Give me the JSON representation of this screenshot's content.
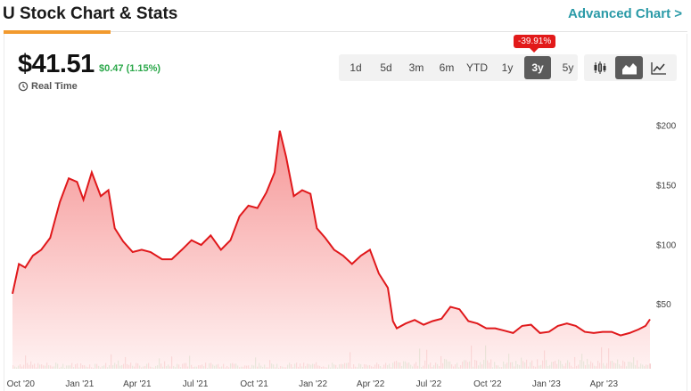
{
  "header": {
    "title": "U Stock Chart & Stats",
    "advanced_link": "Advanced Chart >"
  },
  "quote": {
    "price": "$41.51",
    "change": "$0.47 (1.15%)",
    "realtime_label": "Real Time"
  },
  "ranges": {
    "items": [
      "1d",
      "5d",
      "3m",
      "6m",
      "YTD",
      "1y",
      "3y",
      "5y"
    ],
    "active": "3y",
    "badge": "-39.91%"
  },
  "chart_types": {
    "items": [
      "candlestick-icon",
      "area-chart-icon",
      "line-chart-icon"
    ],
    "active": "area-chart-icon"
  },
  "colors": {
    "line": "#e0181b",
    "fill_top": "#f58f8f",
    "fill_bottom": "#fff0f0",
    "volume_up": "#27a12f",
    "volume_down": "#d4181b",
    "accent": "#2a9aa7"
  },
  "chart_data": {
    "type": "area",
    "title": "",
    "xlabel": "",
    "ylabel": "",
    "ylim": [
      0,
      220
    ],
    "y_ticks": [
      50,
      100,
      150,
      200
    ],
    "y_tick_labels": [
      "$50",
      "$100",
      "$150",
      "$200"
    ],
    "x_tick_labels": [
      "Oct '20",
      "Jan '21",
      "Apr '21",
      "Jul '21",
      "Oct '21",
      "Jan '22",
      "Apr '22",
      "Jul '22",
      "Oct '22",
      "Jan '23",
      "Apr '23"
    ],
    "x_range": [
      "2020-09-18",
      "2023-06-12"
    ],
    "x_ticks": [
      "2020-10-01",
      "2021-01-01",
      "2021-04-01",
      "2021-07-01",
      "2021-10-01",
      "2022-01-01",
      "2022-04-01",
      "2022-07-01",
      "2022-10-01",
      "2023-01-01",
      "2023-04-01"
    ],
    "series": [
      {
        "values": [
          [
            "2020-09-18",
            63
          ],
          [
            "2020-09-28",
            88
          ],
          [
            "2020-10-08",
            85
          ],
          [
            "2020-10-20",
            95
          ],
          [
            "2020-11-02",
            100
          ],
          [
            "2020-11-16",
            110
          ],
          [
            "2020-12-01",
            140
          ],
          [
            "2020-12-15",
            160
          ],
          [
            "2020-12-28",
            157
          ],
          [
            "2021-01-07",
            142
          ],
          [
            "2021-01-20",
            165
          ],
          [
            "2021-02-03",
            145
          ],
          [
            "2021-02-15",
            150
          ],
          [
            "2021-02-25",
            118
          ],
          [
            "2021-03-10",
            107
          ],
          [
            "2021-03-25",
            98
          ],
          [
            "2021-04-08",
            100
          ],
          [
            "2021-04-22",
            98
          ],
          [
            "2021-05-10",
            92
          ],
          [
            "2021-05-25",
            92
          ],
          [
            "2021-06-10",
            100
          ],
          [
            "2021-06-25",
            108
          ],
          [
            "2021-07-10",
            104
          ],
          [
            "2021-07-25",
            112
          ],
          [
            "2021-08-10",
            100
          ],
          [
            "2021-08-25",
            108
          ],
          [
            "2021-09-08",
            128
          ],
          [
            "2021-09-22",
            137
          ],
          [
            "2021-10-06",
            135
          ],
          [
            "2021-10-20",
            148
          ],
          [
            "2021-11-02",
            165
          ],
          [
            "2021-11-10",
            200
          ],
          [
            "2021-11-20",
            178
          ],
          [
            "2021-12-02",
            145
          ],
          [
            "2021-12-15",
            150
          ],
          [
            "2021-12-28",
            147
          ],
          [
            "2022-01-07",
            118
          ],
          [
            "2022-01-20",
            110
          ],
          [
            "2022-02-03",
            100
          ],
          [
            "2022-02-17",
            95
          ],
          [
            "2022-03-03",
            88
          ],
          [
            "2022-03-17",
            95
          ],
          [
            "2022-03-31",
            100
          ],
          [
            "2022-04-14",
            80
          ],
          [
            "2022-04-28",
            68
          ],
          [
            "2022-05-06",
            40
          ],
          [
            "2022-05-12",
            34
          ],
          [
            "2022-05-26",
            38
          ],
          [
            "2022-06-09",
            41
          ],
          [
            "2022-06-23",
            37
          ],
          [
            "2022-07-07",
            40
          ],
          [
            "2022-07-21",
            42
          ],
          [
            "2022-08-04",
            52
          ],
          [
            "2022-08-18",
            50
          ],
          [
            "2022-09-01",
            40
          ],
          [
            "2022-09-15",
            38
          ],
          [
            "2022-09-29",
            34
          ],
          [
            "2022-10-13",
            34
          ],
          [
            "2022-10-27",
            32
          ],
          [
            "2022-11-10",
            30
          ],
          [
            "2022-11-24",
            36
          ],
          [
            "2022-12-08",
            37
          ],
          [
            "2022-12-22",
            30
          ],
          [
            "2023-01-05",
            31
          ],
          [
            "2023-01-19",
            36
          ],
          [
            "2023-02-02",
            38
          ],
          [
            "2023-02-16",
            36
          ],
          [
            "2023-03-02",
            31
          ],
          [
            "2023-03-16",
            30
          ],
          [
            "2023-03-30",
            31
          ],
          [
            "2023-04-13",
            31
          ],
          [
            "2023-04-27",
            28
          ],
          [
            "2023-05-11",
            30
          ],
          [
            "2023-05-25",
            33
          ],
          [
            "2023-06-05",
            36
          ],
          [
            "2023-06-12",
            41.5
          ]
        ]
      }
    ],
    "grid": false
  }
}
